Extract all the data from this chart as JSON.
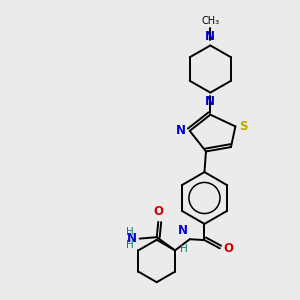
{
  "background_color": "#ebebeb",
  "atom_colors": {
    "C": "#000000",
    "N": "#0000cc",
    "O": "#cc0000",
    "S": "#bbaa00",
    "H": "#008080"
  },
  "figsize": [
    3.0,
    3.0
  ],
  "dpi": 100
}
